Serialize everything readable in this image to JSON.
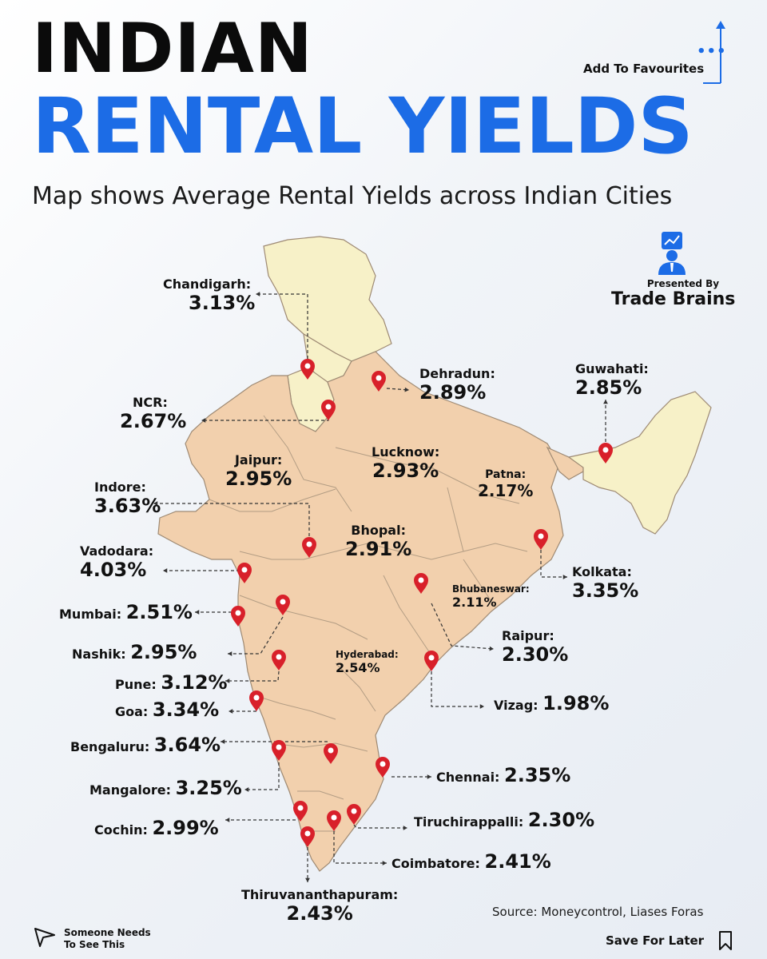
{
  "header": {
    "title_line1": "INDIAN",
    "title_line2": "RENTAL YIELDS",
    "subtitle": "Map shows Average Rental Yields across Indian Cities"
  },
  "favourites": {
    "label": "Add To Favourites",
    "icon": "arrow-up-icon"
  },
  "brand": {
    "presented_by": "Presented By",
    "name": "Trade Brains",
    "icon": "analyst-icon"
  },
  "colors": {
    "accent": "#1c6ce6",
    "state_fill": "#f2d0ad",
    "ne_fill": "#f7f1c8",
    "border": "#9e8a74",
    "pin": "#d8202a"
  },
  "cities": [
    {
      "name": "Chandigarh:",
      "value": "3.13%"
    },
    {
      "name": "Dehradun:",
      "value": "2.89%"
    },
    {
      "name": "Guwahati:",
      "value": "2.85%"
    },
    {
      "name": "NCR:",
      "value": "2.67%"
    },
    {
      "name": "Jaipur:",
      "value": "2.95%"
    },
    {
      "name": "Lucknow:",
      "value": "2.93%"
    },
    {
      "name": "Patna:",
      "value": "2.17%"
    },
    {
      "name": "Indore:",
      "value": "3.63%"
    },
    {
      "name": "Bhopal:",
      "value": "2.91%"
    },
    {
      "name": "Vadodara:",
      "value": "4.03%"
    },
    {
      "name": "Kolkata:",
      "value": "3.35%"
    },
    {
      "name": "Bhubaneswar:",
      "value": "2.11%"
    },
    {
      "name": "Mumbai:",
      "value": "2.51%"
    },
    {
      "name": "Raipur:",
      "value": "2.30%"
    },
    {
      "name": "Nashik:",
      "value": "2.95%"
    },
    {
      "name": "Hyderabad:",
      "value": "2.54%"
    },
    {
      "name": "Pune:",
      "value": "3.12%"
    },
    {
      "name": "Vizag:",
      "value": "1.98%"
    },
    {
      "name": "Goa:",
      "value": "3.34%"
    },
    {
      "name": "Bengaluru:",
      "value": "3.64%"
    },
    {
      "name": "Chennai:",
      "value": "2.35%"
    },
    {
      "name": "Mangalore:",
      "value": "3.25%"
    },
    {
      "name": "Tiruchirappalli:",
      "value": "2.30%"
    },
    {
      "name": "Cochin:",
      "value": "2.99%"
    },
    {
      "name": "Coimbatore:",
      "value": "2.41%"
    },
    {
      "name": "Thiruvananthapuram:",
      "value": "2.43%"
    }
  ],
  "footer": {
    "source": "Source: Moneycontrol, Liases Foras",
    "share_line1": "Someone Needs",
    "share_line2": "To See This",
    "share_icon": "send-icon",
    "save_label": "Save For Later",
    "save_icon": "bookmark-icon"
  }
}
